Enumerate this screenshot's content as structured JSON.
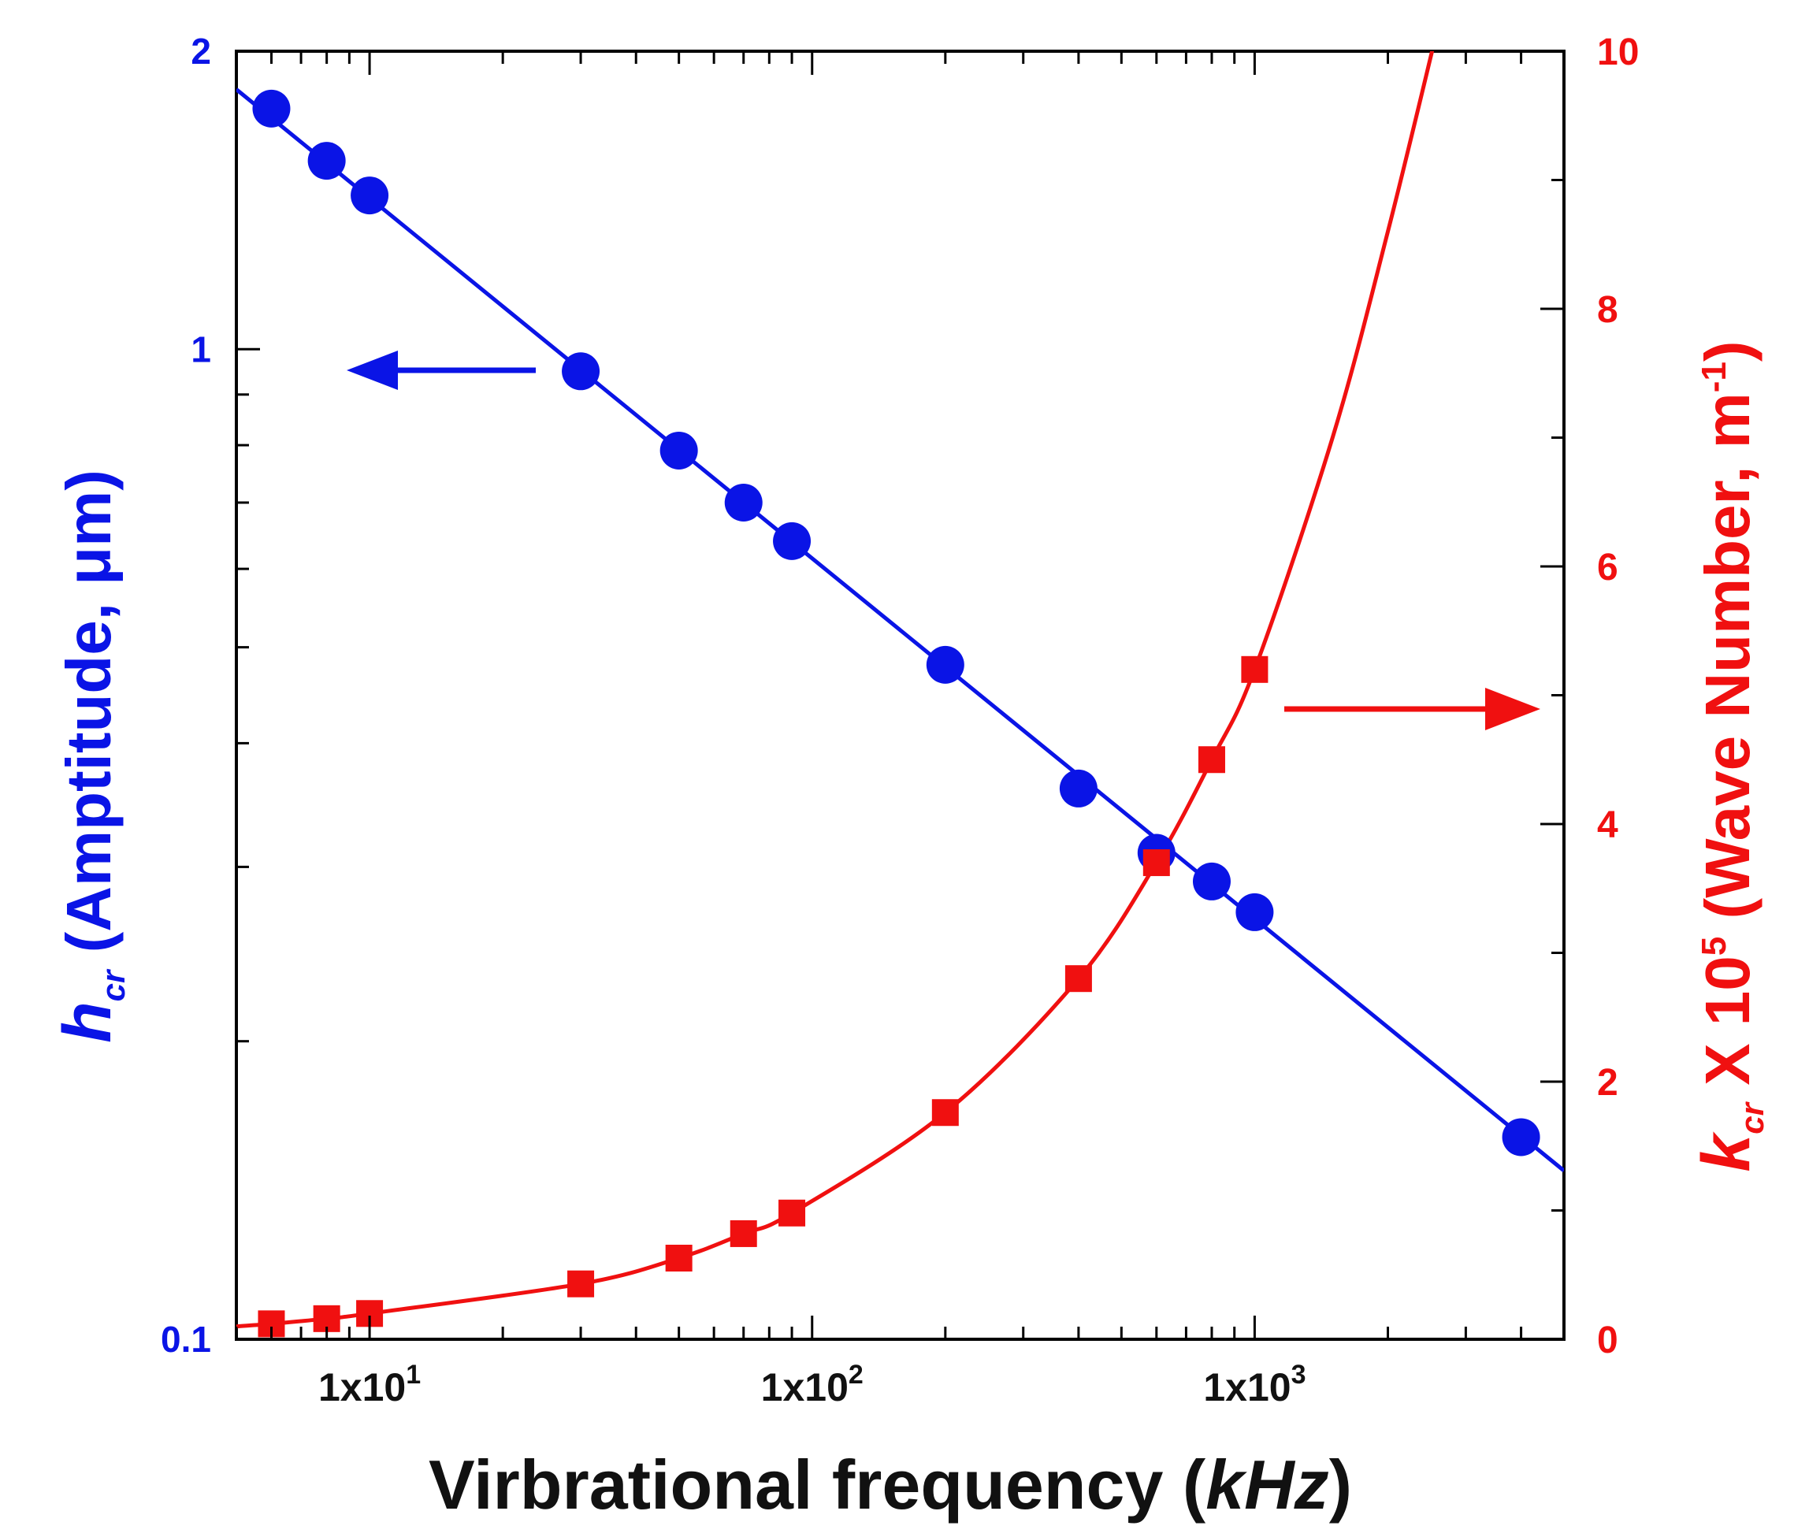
{
  "chart_data": {
    "type": "line",
    "xlabel": "Virbrational frequency",
    "xlabel_unit": "kHz",
    "x_scale": "log",
    "xlim": [
      5,
      5000
    ],
    "x_ticks": [
      {
        "value": 10,
        "label": "1x10",
        "exp": "1"
      },
      {
        "value": 100,
        "label": "1x10",
        "exp": "2"
      },
      {
        "value": 1000,
        "label": "1x10",
        "exp": "3"
      }
    ],
    "y_left": {
      "label_symbol": "h",
      "label_sub": "cr",
      "label_text": "(Amptitude, μm)",
      "scale": "log",
      "ylim": [
        0.1,
        2
      ],
      "ticks": [
        {
          "value": 0.1,
          "label": "0.1"
        },
        {
          "value": 1,
          "label": "1"
        },
        {
          "value": 2,
          "label": "2"
        }
      ],
      "color": "#0a14e6"
    },
    "y_right": {
      "label_symbol": "k",
      "label_sub": "cr",
      "label_text": " X 10",
      "label_exp": "5",
      "label_rest": " (Wave Number, m",
      "label_exp2": "-1",
      "label_close": ")",
      "scale": "linear",
      "ylim": [
        0,
        10
      ],
      "ticks": [
        {
          "value": 0,
          "label": "0"
        },
        {
          "value": 2,
          "label": "2"
        },
        {
          "value": 4,
          "label": "4"
        },
        {
          "value": 6,
          "label": "6"
        },
        {
          "value": 8,
          "label": "8"
        },
        {
          "value": 10,
          "label": "10"
        }
      ],
      "color": "#f01010"
    },
    "series": [
      {
        "name": "h_cr (Amplitude)",
        "axis": "left",
        "color": "#0a14e6",
        "marker": "circle",
        "x": [
          6,
          8,
          10,
          30,
          50,
          70,
          90,
          200,
          400,
          600,
          800,
          1000,
          4000
        ],
        "y": [
          1.75,
          1.55,
          1.43,
          0.95,
          0.79,
          0.7,
          0.64,
          0.48,
          0.36,
          0.31,
          0.29,
          0.27,
          0.16
        ],
        "fit_x": [
          5,
          5000
        ],
        "fit_y": [
          1.83,
          0.148
        ]
      },
      {
        "name": "k_cr (Wave Number)",
        "axis": "right",
        "color": "#f01010",
        "marker": "square",
        "x": [
          6,
          8,
          10,
          30,
          50,
          70,
          90,
          200,
          400,
          600,
          800,
          1000
        ],
        "y": [
          0.12,
          0.16,
          0.2,
          0.43,
          0.63,
          0.82,
          0.98,
          1.76,
          2.8,
          3.7,
          4.5,
          5.2
        ],
        "curve_x": [
          5,
          6,
          8,
          10,
          30,
          50,
          70,
          90,
          200,
          400,
          600,
          800,
          1000,
          1500,
          2000,
          2600
        ],
        "curve_y": [
          0.1,
          0.12,
          0.16,
          0.2,
          0.43,
          0.63,
          0.82,
          0.98,
          1.76,
          2.8,
          3.7,
          4.5,
          5.2,
          7.0,
          8.6,
          10.2
        ]
      }
    ],
    "annotations": [
      {
        "type": "arrow",
        "direction": "left",
        "color": "#0a14e6",
        "points_to": "left axis"
      },
      {
        "type": "arrow",
        "direction": "right",
        "color": "#f01010",
        "points_to": "right axis"
      }
    ]
  }
}
